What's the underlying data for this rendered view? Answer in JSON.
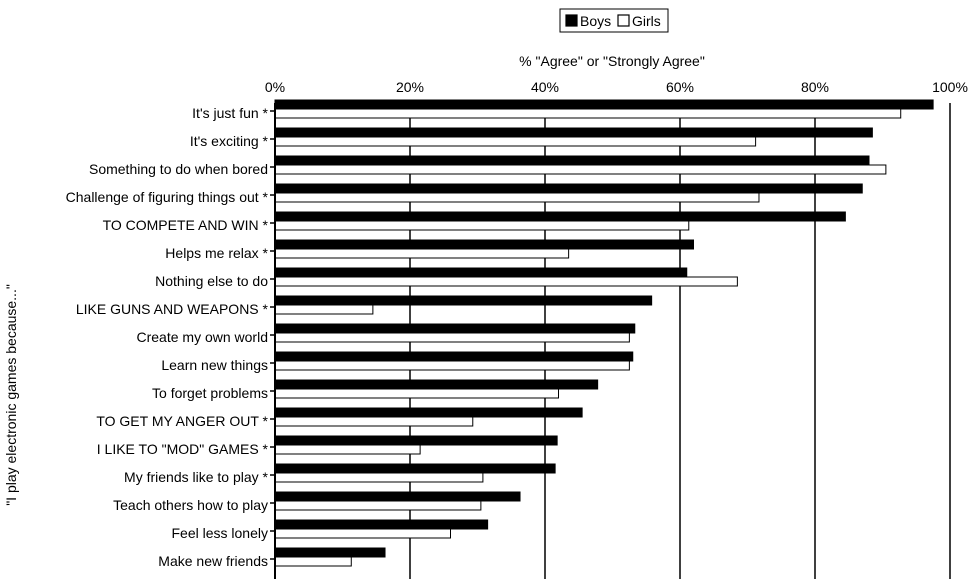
{
  "chart_data": {
    "type": "bar",
    "orientation": "horizontal",
    "title": "",
    "xlabel": "% \"Agree\" or \"Strongly Agree\"",
    "ylabel": "\"I play electronic games because...\"",
    "xlim": [
      0,
      100
    ],
    "x_ticks": [
      "0%",
      "20%",
      "40%",
      "60%",
      "80%",
      "100%"
    ],
    "legend_placement": "top",
    "grid": true,
    "categories": [
      "It's just fun *",
      "It's exciting *",
      "Something to do when bored",
      "Challenge of figuring things out *",
      "TO COMPETE AND WIN *",
      "Helps me relax *",
      "Nothing else to do",
      "LIKE GUNS AND WEAPONS *",
      "Create my own world",
      "Learn new things",
      "To forget problems",
      "TO GET MY ANGER OUT *",
      "I LIKE TO \"MOD\" GAMES *",
      "My friends like to play *",
      "Teach others how to play",
      "Feel less lonely",
      "Make new friends"
    ],
    "series": [
      {
        "name": "Boys",
        "color": "#000000",
        "values": [
          97.5,
          88.5,
          88,
          87,
          84.5,
          62,
          61,
          55.8,
          53.3,
          53,
          47.8,
          45.5,
          41.8,
          41.5,
          36.3,
          31.5,
          16.3
        ]
      },
      {
        "name": "Girls",
        "color": "#ffffff",
        "values": [
          92.7,
          71.2,
          90.5,
          71.7,
          61.3,
          43.5,
          68.5,
          14.5,
          52.5,
          52.5,
          42,
          29.3,
          21.5,
          30.8,
          30.5,
          26,
          11.3
        ]
      }
    ]
  }
}
